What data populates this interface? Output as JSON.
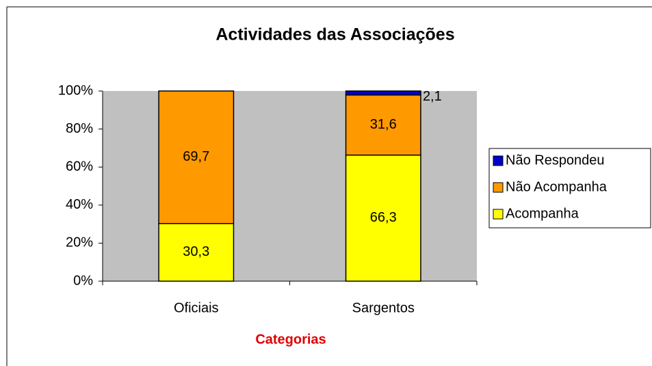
{
  "chart_data": {
    "type": "stacked_bar",
    "title": "Actividades das Associações",
    "x_label": "Categorias",
    "categories": [
      "Oficiais",
      "Sargentos"
    ],
    "series": [
      {
        "name": "Acompanha",
        "color": "#ffff00",
        "values": [
          30.3,
          66.3
        ],
        "value_labels": [
          "30,3",
          "66,3"
        ]
      },
      {
        "name": "Não Acompanha",
        "color": "#ff9900",
        "values": [
          69.7,
          31.6
        ],
        "value_labels": [
          "69,7",
          "31,6"
        ]
      },
      {
        "name": "Não Respondeu",
        "color": "#0000cc",
        "values": [
          0,
          2.1
        ],
        "value_labels": [
          null,
          "2,1"
        ]
      }
    ],
    "ylim": [
      0,
      100
    ],
    "yticks": [
      {
        "value": 0,
        "label": "0%"
      },
      {
        "value": 20,
        "label": "20%"
      },
      {
        "value": 40,
        "label": "40%"
      },
      {
        "value": 60,
        "label": "60%"
      },
      {
        "value": 80,
        "label": "80%"
      },
      {
        "value": 100,
        "label": "100%"
      }
    ],
    "plot_background": "#c0c0c0",
    "legend": "right"
  }
}
